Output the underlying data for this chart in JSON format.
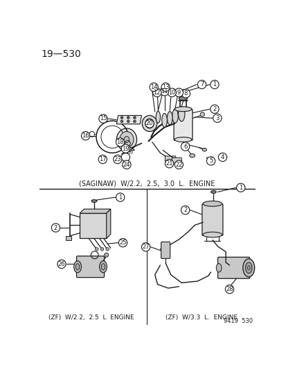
{
  "bg_color": "#f5f5f0",
  "line_color": "#1a1a1a",
  "text_color": "#1a1a1a",
  "top_label": "19—530",
  "saginaw_label": "(SAGINAW)  W/2.2,  2.5,  3.0  L.  ENGINE",
  "zf_22_label": "(ZF)  W/2.2,  2.5  L  ENGINE",
  "zf_33_label": "(ZF)  W/3.3  L.  ENGINE",
  "catalog_number": "9419  530"
}
